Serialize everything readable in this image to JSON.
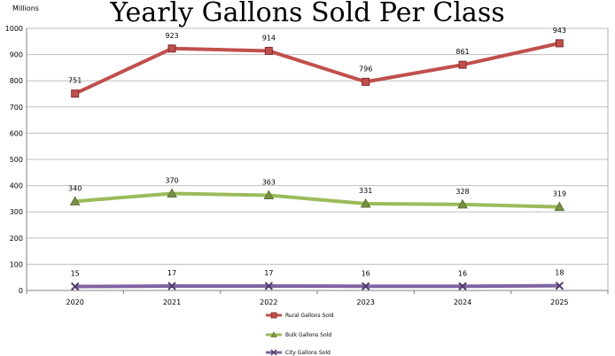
{
  "chart_data": {
    "type": "line",
    "title": "Yearly Gallons Sold Per Class",
    "unit_label": "Millions",
    "categories": [
      "2020",
      "2021",
      "2022",
      "2023",
      "2024",
      "2025"
    ],
    "ylim": [
      0,
      1000
    ],
    "yticks": [
      "0",
      "100",
      "200",
      "300",
      "400",
      "500",
      "600",
      "700",
      "800",
      "900",
      "1000"
    ],
    "grid": true,
    "legend_position": "bottom",
    "series": [
      {
        "name": "Rural Gallons Sold",
        "values": [
          751,
          923,
          914,
          796,
          861,
          943
        ],
        "labels": [
          "751",
          "923",
          "914",
          "796",
          "861",
          "943"
        ],
        "color": "#c0504d",
        "marker": "square"
      },
      {
        "name": "Bulk Gallons Sold",
        "values": [
          340,
          370,
          363,
          331,
          328,
          319
        ],
        "labels": [
          "340",
          "370",
          "363",
          "331",
          "328",
          "319"
        ],
        "color": "#9bbb59",
        "marker": "triangle"
      },
      {
        "name": "City Gallons Sold",
        "values": [
          15,
          17,
          17,
          16,
          16,
          18
        ],
        "labels": [
          "15",
          "17",
          "17",
          "16",
          "16",
          "18"
        ],
        "color": "#8064a2",
        "marker": "x"
      }
    ]
  }
}
